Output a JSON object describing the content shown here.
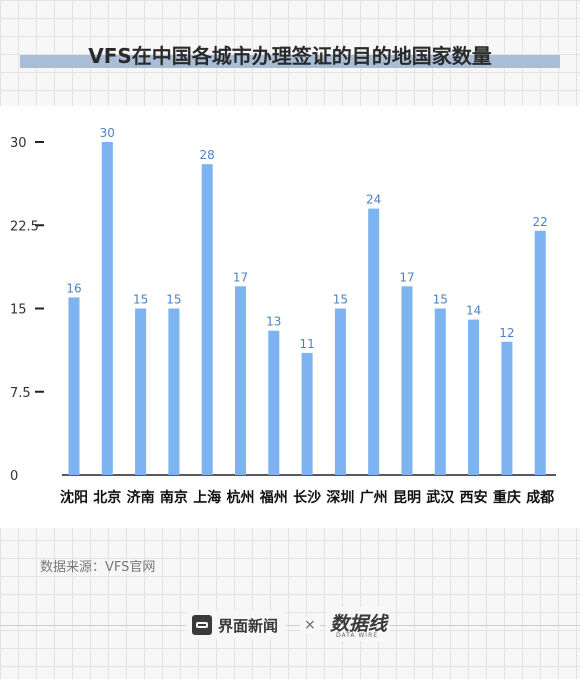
{
  "title": "VFS在中国各城市办理签证的目的地国家数量",
  "source": "数据来源：VFS官网",
  "footer": {
    "brand": "界面新闻",
    "times": "×",
    "partner": "数据线",
    "partner_sub": "DATA WIRE"
  },
  "colors": {
    "bar": "#7cb3f0",
    "axis": "#222222",
    "label": "#4a84c4"
  },
  "chart_data": {
    "type": "bar",
    "categories": [
      "沈阳",
      "北京",
      "济南",
      "南京",
      "上海",
      "杭州",
      "福州",
      "长沙",
      "深圳",
      "广州",
      "昆明",
      "武汉",
      "西安",
      "重庆",
      "成都"
    ],
    "values": [
      16,
      30,
      15,
      15,
      28,
      17,
      13,
      11,
      15,
      24,
      17,
      15,
      14,
      12,
      22
    ],
    "yticks": [
      "0",
      "7.5",
      "15",
      "22.5",
      "30"
    ],
    "ylim": [
      0,
      30
    ],
    "grid": false,
    "legend": "none"
  }
}
